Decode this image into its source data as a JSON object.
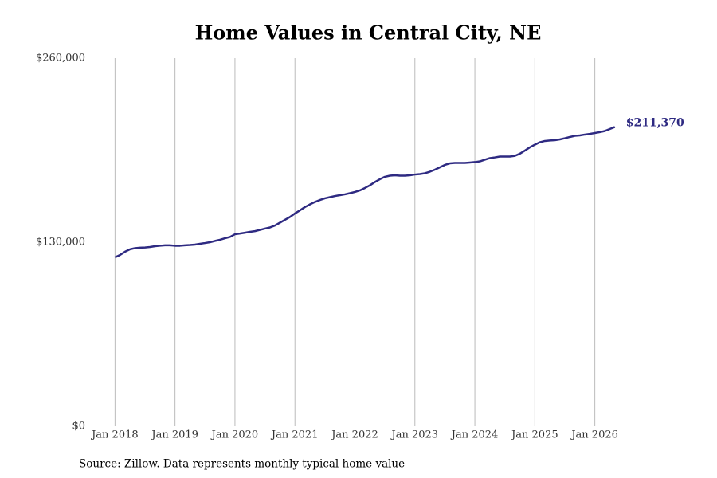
{
  "chart_data": {
    "type": "line",
    "title": "Home Values in Central City, NE",
    "source": "Source: Zillow. Data represents monthly typical home value",
    "x": [
      "2018-01",
      "2018-02",
      "2018-03",
      "2018-04",
      "2018-05",
      "2018-06",
      "2018-07",
      "2018-08",
      "2018-09",
      "2018-10",
      "2018-11",
      "2018-12",
      "2019-01",
      "2019-02",
      "2019-03",
      "2019-04",
      "2019-05",
      "2019-06",
      "2019-07",
      "2019-08",
      "2019-09",
      "2019-10",
      "2019-11",
      "2019-12",
      "2020-01",
      "2020-02",
      "2020-03",
      "2020-04",
      "2020-05",
      "2020-06",
      "2020-07",
      "2020-08",
      "2020-09",
      "2020-10",
      "2020-11",
      "2020-12",
      "2021-01",
      "2021-02",
      "2021-03",
      "2021-04",
      "2021-05",
      "2021-06",
      "2021-07",
      "2021-08",
      "2021-09",
      "2021-10",
      "2021-11",
      "2021-12",
      "2022-01",
      "2022-02",
      "2022-03",
      "2022-04",
      "2022-05",
      "2022-06",
      "2022-07",
      "2022-08",
      "2022-09",
      "2022-10",
      "2022-11",
      "2022-12",
      "2023-01",
      "2023-02",
      "2023-03",
      "2023-04",
      "2023-05",
      "2023-06",
      "2023-07",
      "2023-08",
      "2023-09",
      "2023-10",
      "2023-11",
      "2023-12",
      "2024-01",
      "2024-02",
      "2024-03",
      "2024-04",
      "2024-05",
      "2024-06",
      "2024-07",
      "2024-08",
      "2024-09",
      "2024-10",
      "2024-11",
      "2024-12",
      "2025-01",
      "2025-02",
      "2025-03",
      "2025-04",
      "2025-05",
      "2025-06",
      "2025-07",
      "2025-08",
      "2025-09",
      "2025-10",
      "2025-11",
      "2025-12",
      "2026-01",
      "2026-02",
      "2026-03",
      "2026-04",
      "2026-05"
    ],
    "series": [
      {
        "name": "Home value",
        "color": "#2e2a82",
        "values": [
          119300,
          121000,
          123300,
          125000,
          125800,
          126100,
          126300,
          126600,
          127200,
          127500,
          127800,
          127800,
          127500,
          127500,
          127800,
          128000,
          128300,
          128900,
          129400,
          130000,
          130900,
          131700,
          132800,
          133700,
          135600,
          136100,
          136700,
          137300,
          137800,
          138700,
          139600,
          140400,
          141800,
          143800,
          145800,
          147800,
          150300,
          152500,
          154800,
          156700,
          158400,
          159800,
          161000,
          161800,
          162600,
          163200,
          163800,
          164600,
          165500,
          166600,
          168300,
          170200,
          172500,
          174500,
          176200,
          177000,
          177300,
          177000,
          177000,
          177300,
          177800,
          178100,
          178700,
          179800,
          181200,
          182900,
          184600,
          185700,
          186000,
          186000,
          186000,
          186300,
          186600,
          187100,
          188300,
          189400,
          189900,
          190500,
          190500,
          190500,
          191000,
          192500,
          194700,
          197000,
          198900,
          200600,
          201500,
          201800,
          202000,
          202600,
          203400,
          204300,
          205100,
          205400,
          206000,
          206500,
          207100,
          207700,
          208500,
          209900,
          211370
        ],
        "value_labels": [
          null,
          null,
          null,
          null,
          null,
          null,
          null,
          null,
          null,
          null,
          null,
          null,
          null,
          null,
          null,
          null,
          null,
          null,
          null,
          null,
          null,
          null,
          null,
          null,
          null,
          null,
          null,
          null,
          null,
          null,
          null,
          null,
          null,
          null,
          null,
          null,
          null,
          null,
          null,
          null,
          null,
          null,
          null,
          null,
          null,
          null,
          null,
          null,
          null,
          null,
          null,
          null,
          null,
          null,
          null,
          null,
          null,
          null,
          null,
          null,
          null,
          null,
          null,
          null,
          null,
          null,
          null,
          null,
          null,
          null,
          null,
          null,
          null,
          null,
          null,
          null,
          null,
          null,
          null,
          null,
          null,
          null,
          null,
          null,
          null,
          null,
          null,
          null,
          null,
          null,
          null,
          null,
          null,
          null,
          null,
          null,
          null,
          null,
          null,
          null,
          "$211,370"
        ]
      }
    ],
    "xlim": [
      "2017-08",
      "2026-06"
    ],
    "xticks": [
      {
        "value": "2018-01",
        "label": "Jan 2018"
      },
      {
        "value": "2019-01",
        "label": "Jan 2019"
      },
      {
        "value": "2020-01",
        "label": "Jan 2020"
      },
      {
        "value": "2021-01",
        "label": "Jan 2021"
      },
      {
        "value": "2022-01",
        "label": "Jan 2022"
      },
      {
        "value": "2023-01",
        "label": "Jan 2023"
      },
      {
        "value": "2024-01",
        "label": "Jan 2024"
      },
      {
        "value": "2025-01",
        "label": "Jan 2025"
      },
      {
        "value": "2026-01",
        "label": "Jan 2026"
      }
    ],
    "ylim": [
      0,
      260000
    ],
    "yticks": [
      {
        "value": 0,
        "label": "$0"
      },
      {
        "value": 130000,
        "label": "$130,000"
      },
      {
        "value": 260000,
        "label": "$260,000"
      }
    ],
    "grid": "x"
  }
}
